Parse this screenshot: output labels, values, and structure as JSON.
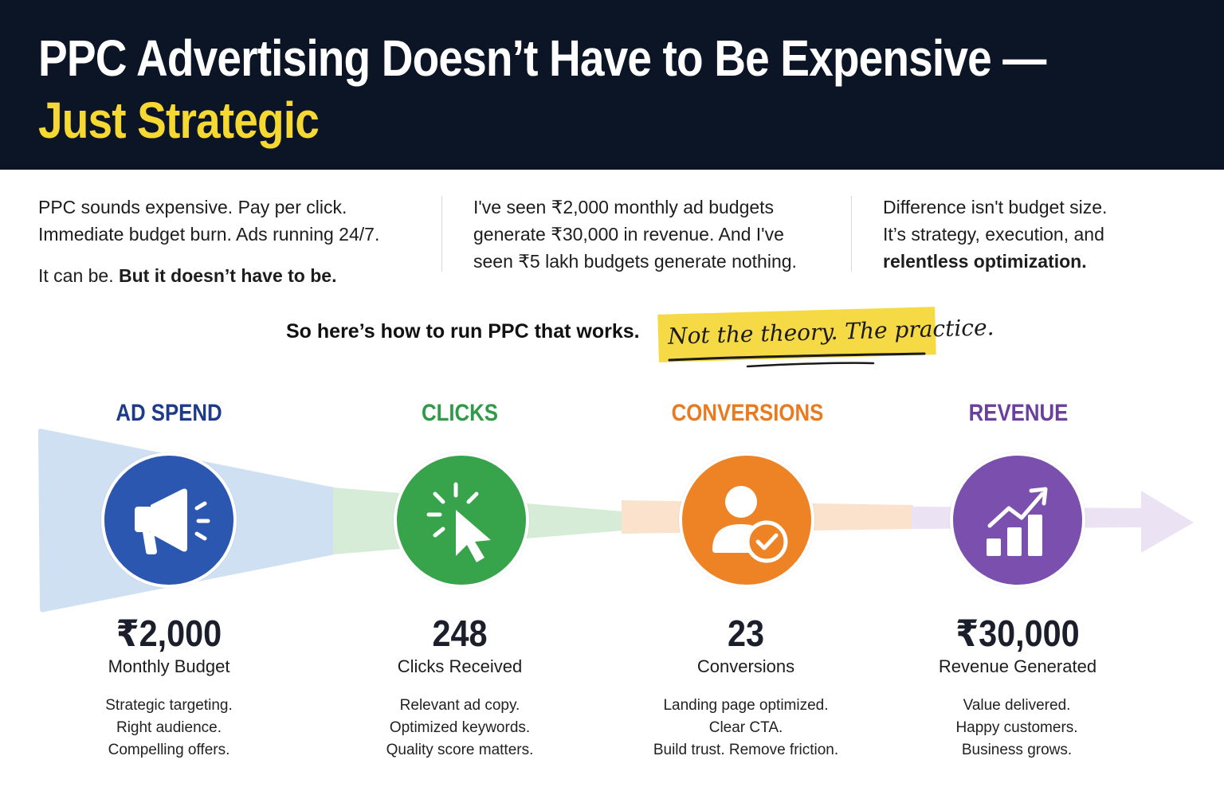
{
  "header": {
    "title_line1": "PPC Advertising Doesn’t Have to Be Expensive —",
    "title_line2": "Just Strategic",
    "bg_color": "#0c1526",
    "accent_color": "#f5d832"
  },
  "intro": {
    "col1": {
      "line1": "PPC sounds expensive. Pay per click.",
      "line2": "Immediate budget burn. Ads running 24/7.",
      "line3_plain": "It can be.",
      "line3_bold": "But it doesn’t have to be."
    },
    "col2": {
      "line1": "I've seen ₹2,000 monthly ad budgets",
      "line2": "generate ₹30,000 in revenue. And I've",
      "line3": "seen ₹5 lakh budgets generate nothing."
    },
    "col3": {
      "line1": "Difference isn't budget size.",
      "line2": "It’s strategy, execution, and",
      "line3_bold": "relentless optimization."
    }
  },
  "tagline": {
    "text": "So here’s how to run PPC that works.",
    "handwritten": "Not the theory. The practice."
  },
  "stages": [
    {
      "title": "AD SPEND",
      "color": "#1e3a8a",
      "circle_color": "#2b57b0",
      "icon": "megaphone-icon",
      "value": "₹2,000",
      "label": "Monthly Budget",
      "notes": [
        "Strategic targeting.",
        "Right audience.",
        "Compelling offers."
      ]
    },
    {
      "title": "CLICKS",
      "color": "#2f9a48",
      "circle_color": "#37a34a",
      "icon": "cursor-click-icon",
      "value": "248",
      "label": "Clicks Received",
      "notes": [
        "Relevant ad copy.",
        "Optimized keywords.",
        "Quality score matters."
      ]
    },
    {
      "title": "CONVERSIONS",
      "color": "#ea7a1e",
      "circle_color": "#ee8325",
      "icon": "user-check-icon",
      "value": "23",
      "label": "Conversions",
      "notes": [
        "Landing page optimized.",
        "Clear CTA.",
        "Build trust. Remove friction."
      ]
    },
    {
      "title": "REVENUE",
      "color": "#6a3f9e",
      "circle_color": "#7b4fae",
      "icon": "growth-chart-icon",
      "value": "₹30,000",
      "label": "Revenue Generated",
      "notes": [
        "Value delivered.",
        "Happy customers.",
        "Business grows."
      ]
    }
  ]
}
